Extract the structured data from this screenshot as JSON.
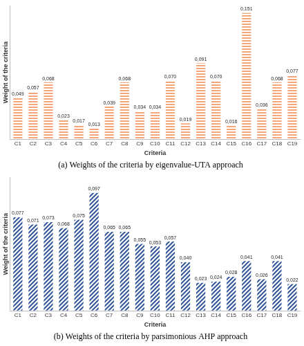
{
  "chart_data": [
    {
      "type": "bar",
      "title": "(a) Weights of the criteria by eigenvalue-UTA approach",
      "x_label": "Criteria",
      "y_label": "Weight of the criteria",
      "categories": [
        "C1",
        "C2",
        "C3",
        "C4",
        "C5",
        "C6",
        "C7",
        "C8",
        "C9",
        "C10",
        "C11",
        "C12",
        "C13",
        "C14",
        "C15",
        "C16",
        "C17",
        "C18",
        "C19"
      ],
      "values": [
        0.049,
        0.057,
        0.068,
        0.023,
        0.017,
        0.013,
        0.039,
        0.068,
        0.034,
        0.034,
        0.07,
        0.019,
        0.091,
        0.07,
        0.016,
        0.151,
        0.036,
        0.068,
        0.077
      ],
      "value_labels": [
        "0,049",
        "0,057",
        "0,068",
        "0,023",
        "0,017",
        "0,013",
        "0,039",
        "0,068",
        "0,034",
        "0,034",
        "0,070",
        "0,019",
        "0,091",
        "0,070",
        "0,016",
        "0,151",
        "0,036",
        "0,068",
        "0,077"
      ],
      "color": "#f4a57a",
      "ylim": [
        0,
        0.16
      ],
      "grid": false,
      "data_labels": true,
      "tick_labels": "x"
    },
    {
      "type": "bar",
      "title": "(b) Weights of the criteria by parsimonious AHP approach",
      "x_label": "Criteria",
      "y_label": "Weight of the criteria",
      "categories": [
        "C1",
        "C2",
        "C3",
        "C4",
        "C5",
        "C6",
        "C7",
        "C8",
        "C9",
        "C10",
        "C11",
        "C12",
        "C13",
        "C14",
        "C15",
        "C16",
        "C17",
        "C18",
        "C19"
      ],
      "values": [
        0.077,
        0.071,
        0.073,
        0.068,
        0.075,
        0.097,
        0.065,
        0.065,
        0.055,
        0.053,
        0.057,
        0.04,
        0.023,
        0.024,
        0.028,
        0.041,
        0.026,
        0.041,
        0.022
      ],
      "value_labels": [
        "0,077",
        "0,071",
        "0,073",
        "0,068",
        "0,075",
        "0,097",
        "0,065",
        "0,065",
        "0,055",
        "0,053",
        "0,057",
        "0,040",
        "0,023",
        "0,024",
        "0,028",
        "0,041",
        "0,026",
        "0,041",
        "0,022"
      ],
      "color": "#2f5597",
      "ylim": [
        0,
        0.11
      ],
      "grid": false,
      "data_labels": true,
      "tick_labels": "x"
    }
  ]
}
